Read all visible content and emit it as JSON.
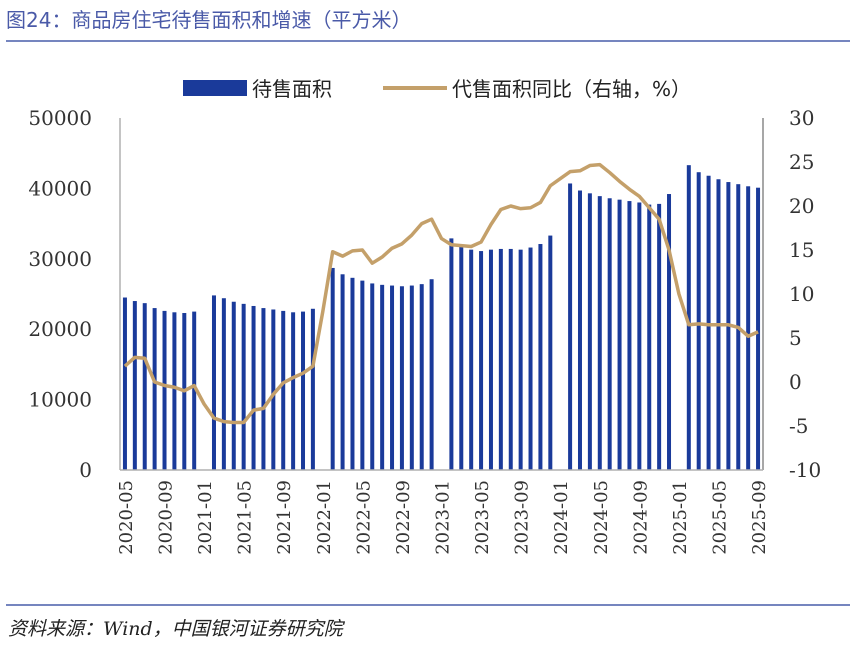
{
  "title": "图24：商品房住宅待售面积和增速（平方米）",
  "source": "资料来源：Wind，中国银河证券研究院",
  "colors": {
    "bar": "#1a3a9a",
    "line": "#c4a06a",
    "axis": "#b0b0b0",
    "title": "#4a5aa8"
  },
  "chart_data": {
    "type": "bar+line",
    "title": "商品房住宅待售面积和增速（平方米）",
    "legend": [
      {
        "name": "待售面积",
        "kind": "bar",
        "color": "#1a3a9a"
      },
      {
        "name": "代售面积同比（右轴，%）",
        "kind": "line",
        "color": "#c4a06a"
      }
    ],
    "legend_position": "top-center",
    "y_left": {
      "min": 0,
      "max": 50000,
      "ticks": [
        0,
        10000,
        20000,
        30000,
        40000,
        50000
      ]
    },
    "y_right": {
      "min": -10,
      "max": 30,
      "ticks": [
        -10,
        -5,
        0,
        5,
        10,
        15,
        20,
        25,
        30
      ]
    },
    "x_tick_labels": [
      "2020-05",
      "2020-09",
      "2021-01",
      "2021-05",
      "2021-09",
      "2022-01",
      "2022-05",
      "2022-09",
      "2023-01",
      "2023-05",
      "2023-09",
      "2024-01",
      "2024-05",
      "2024-09",
      "2025-01",
      "2025-05",
      "2025-09"
    ],
    "x_tick_indices": [
      0,
      4,
      8,
      12,
      16,
      20,
      24,
      28,
      32,
      36,
      40,
      44,
      48,
      52,
      56,
      60,
      64
    ],
    "x": [
      "2020-05",
      "2020-06",
      "2020-07",
      "2020-08",
      "2020-09",
      "2020-10",
      "2020-11",
      "2020-12",
      "2021-01",
      "2021-02",
      "2021-03",
      "2021-04",
      "2021-05",
      "2021-06",
      "2021-07",
      "2021-08",
      "2021-09",
      "2021-10",
      "2021-11",
      "2021-12",
      "2022-01",
      "2022-02",
      "2022-03",
      "2022-04",
      "2022-05",
      "2022-06",
      "2022-07",
      "2022-08",
      "2022-09",
      "2022-10",
      "2022-11",
      "2022-12",
      "2023-01",
      "2023-02",
      "2023-03",
      "2023-04",
      "2023-05",
      "2023-06",
      "2023-07",
      "2023-08",
      "2023-09",
      "2023-10",
      "2023-11",
      "2023-12",
      "2024-01",
      "2024-02",
      "2024-03",
      "2024-04",
      "2024-05",
      "2024-06",
      "2024-07",
      "2024-08",
      "2024-09",
      "2024-10",
      "2024-11",
      "2024-12",
      "2025-01",
      "2025-02",
      "2025-03",
      "2025-04",
      "2025-05",
      "2025-06",
      "2025-07",
      "2025-08",
      "2025-09"
    ],
    "series": [
      {
        "name": "待售面积",
        "axis": "left",
        "values": [
          24500,
          24000,
          23700,
          23000,
          22600,
          22400,
          22300,
          22500,
          null,
          24800,
          24400,
          23900,
          23600,
          23300,
          23000,
          22800,
          22600,
          22400,
          22500,
          22900,
          null,
          28700,
          27800,
          27300,
          26900,
          26500,
          26300,
          26200,
          26100,
          26200,
          26400,
          27100,
          null,
          32900,
          32000,
          31300,
          31100,
          31300,
          31400,
          31400,
          31300,
          31600,
          32100,
          33300,
          null,
          40700,
          39700,
          39300,
          38900,
          38600,
          38400,
          38200,
          38000,
          37700,
          37800,
          39200,
          null,
          43300,
          42300,
          41800,
          41300,
          40900,
          40600,
          40300,
          40100
        ]
      },
      {
        "name": "代售面积同比（右轴，%）",
        "axis": "right",
        "values": [
          1.8,
          2.8,
          2.7,
          0,
          -0.4,
          -0.6,
          -1,
          -0.4,
          -2.5,
          -4.1,
          -4.5,
          -4.6,
          -4.6,
          -3.2,
          -3.0,
          -1.4,
          -0.1,
          0.5,
          1.0,
          1.8,
          8.0,
          14.8,
          14.3,
          14.9,
          15.0,
          13.5,
          14.2,
          15.2,
          15.7,
          16.7,
          18.0,
          18.5,
          16.3,
          15.6,
          15.5,
          15.4,
          15.9,
          17.9,
          19.6,
          20.0,
          19.7,
          19.8,
          20.4,
          22.3,
          23.1,
          23.9,
          24.0,
          24.6,
          24.7,
          23.8,
          22.8,
          21.9,
          21.1,
          19.8,
          18.5,
          15.0,
          10.0,
          6.5,
          6.6,
          6.5,
          6.5,
          6.5,
          6.2,
          5.2,
          5.7
        ]
      }
    ]
  }
}
